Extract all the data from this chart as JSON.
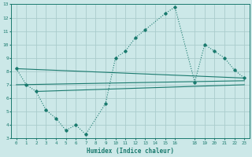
{
  "bg_color": "#cce8e8",
  "grid_color": "#aacccc",
  "line_color": "#1a7a6e",
  "xlabel": "Humidex (Indice chaleur)",
  "xlim": [
    -0.5,
    23.5
  ],
  "ylim": [
    3,
    13
  ],
  "xticks": [
    0,
    1,
    2,
    3,
    4,
    5,
    6,
    7,
    8,
    9,
    10,
    11,
    12,
    13,
    14,
    15,
    16,
    18,
    19,
    20,
    21,
    22,
    23
  ],
  "yticks": [
    3,
    4,
    5,
    6,
    7,
    8,
    9,
    10,
    11,
    12,
    13
  ],
  "curve1_x": [
    0,
    1,
    2,
    3,
    4,
    5,
    6,
    7,
    9,
    10,
    11,
    12,
    13,
    15,
    16,
    18,
    19,
    20,
    21,
    22,
    23
  ],
  "curve1_y": [
    8.2,
    7.0,
    6.5,
    5.1,
    4.5,
    3.6,
    4.0,
    3.3,
    5.6,
    9.0,
    9.5,
    10.5,
    11.1,
    12.3,
    12.8,
    7.2,
    10.0,
    9.5,
    9.0,
    8.1,
    7.5
  ],
  "line2_x": [
    0,
    23
  ],
  "line2_y": [
    8.2,
    7.5
  ],
  "line3_x": [
    0,
    23
  ],
  "line3_y": [
    7.0,
    7.3
  ],
  "line4_x": [
    2,
    23
  ],
  "line4_y": [
    6.5,
    7.0
  ]
}
